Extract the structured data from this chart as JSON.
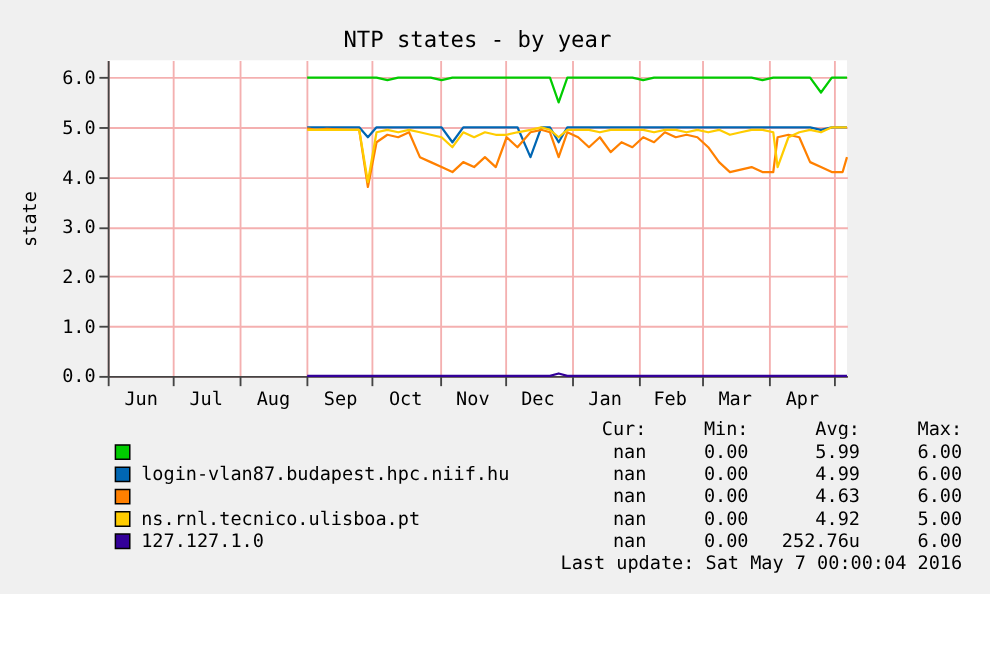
{
  "chart_data": {
    "type": "line",
    "title": "NTP states - by year",
    "ylabel": "state",
    "x": [
      "2015-09-01",
      "2015-09-05",
      "2015-09-10",
      "2015-09-15",
      "2015-09-20",
      "2015-09-25",
      "2015-09-29",
      "2015-10-03",
      "2015-10-08",
      "2015-10-13",
      "2015-10-18",
      "2015-10-23",
      "2015-10-28",
      "2015-11-02",
      "2015-11-07",
      "2015-11-12",
      "2015-11-17",
      "2015-11-22",
      "2015-11-27",
      "2015-12-02",
      "2015-12-07",
      "2015-12-13",
      "2015-12-18",
      "2015-12-22",
      "2015-12-26",
      "2015-12-30",
      "2016-01-04",
      "2016-01-09",
      "2016-01-14",
      "2016-01-19",
      "2016-01-24",
      "2016-01-29",
      "2016-02-03",
      "2016-02-08",
      "2016-02-13",
      "2016-02-18",
      "2016-02-23",
      "2016-02-28",
      "2016-03-04",
      "2016-03-09",
      "2016-03-14",
      "2016-03-19",
      "2016-03-24",
      "2016-03-29",
      "2016-04-03",
      "2016-04-05",
      "2016-04-10",
      "2016-04-15",
      "2016-04-20",
      "2016-04-25",
      "2016-04-30",
      "2016-05-05",
      "2016-05-07"
    ],
    "series": [
      {
        "color": "#00cc00",
        "values": [
          6,
          6,
          6,
          6,
          6,
          6,
          6,
          6,
          5.95,
          6,
          6,
          6,
          6,
          5.95,
          6,
          6,
          6,
          6,
          6,
          6,
          6,
          6,
          6,
          6,
          5.5,
          6,
          6,
          6,
          6,
          6,
          6,
          6,
          5.95,
          6,
          6,
          6,
          6,
          6,
          6,
          6,
          6,
          6,
          6,
          5.95,
          6,
          6,
          6,
          6,
          6,
          5.7,
          6,
          6,
          6
        ]
      },
      {
        "name": "login-vlan87.budapest.hpc.niif.hu",
        "color": "#0066b3",
        "values": [
          5,
          5,
          5,
          5,
          5,
          5,
          4.8,
          5,
          5,
          5,
          5,
          5,
          5,
          5,
          4.7,
          5,
          5,
          5,
          5,
          5,
          5,
          4.4,
          5,
          5,
          4.7,
          5,
          5,
          5,
          5,
          5,
          5,
          5,
          5,
          5,
          5,
          5,
          5,
          5,
          5,
          5,
          5,
          5,
          5,
          5,
          5,
          5,
          5,
          5,
          5,
          4.95,
          5,
          5,
          5
        ]
      },
      {
        "color": "#ff8000",
        "values": [
          4.98,
          4.95,
          4.97,
          4.96,
          4.95,
          4.95,
          3.8,
          4.7,
          4.85,
          4.8,
          4.9,
          4.4,
          4.3,
          4.2,
          4.1,
          4.3,
          4.2,
          4.4,
          4.2,
          4.8,
          4.6,
          4.9,
          4.95,
          4.9,
          4.4,
          4.9,
          4.8,
          4.6,
          4.8,
          4.5,
          4.7,
          4.6,
          4.8,
          4.7,
          4.9,
          4.8,
          4.85,
          4.8,
          4.6,
          4.3,
          4.1,
          4.15,
          4.2,
          4.1,
          4.1,
          4.8,
          4.85,
          4.8,
          4.3,
          4.2,
          4.1,
          4.1,
          4.4
        ]
      },
      {
        "name": "ns.rnl.tecnico.ulisboa.pt",
        "color": "#ffcc00",
        "values": [
          4.95,
          4.95,
          4.95,
          4.95,
          4.95,
          4.95,
          3.9,
          4.9,
          4.95,
          4.9,
          4.95,
          4.9,
          4.85,
          4.8,
          4.6,
          4.9,
          4.8,
          4.9,
          4.85,
          4.85,
          4.9,
          4.95,
          5,
          4.95,
          4.8,
          4.95,
          4.95,
          4.95,
          4.9,
          4.95,
          4.95,
          4.95,
          4.95,
          4.9,
          4.95,
          4.95,
          4.9,
          4.95,
          4.9,
          4.95,
          4.85,
          4.9,
          4.95,
          4.95,
          4.9,
          4.2,
          4.8,
          4.9,
          4.95,
          4.9,
          5,
          5,
          5
        ]
      },
      {
        "name": "127.127.1.0",
        "color": "#330099",
        "values": [
          0,
          0,
          0,
          0,
          0,
          0,
          0,
          0,
          0,
          0,
          0,
          0,
          0,
          0,
          0,
          0,
          0,
          0,
          0,
          0,
          0,
          0,
          0,
          0,
          0.05,
          0,
          0,
          0,
          0,
          0,
          0,
          0,
          0,
          0,
          0,
          0,
          0,
          0,
          0,
          0,
          0,
          0,
          0,
          0,
          0,
          0,
          0,
          0,
          0,
          0,
          0,
          0,
          0
        ]
      }
    ],
    "xlim": [
      "2015-06-01",
      "2016-05-07"
    ],
    "xticks": [
      {
        "value": "2015-06-01",
        "label": null
      },
      {
        "value": "2015-06-16",
        "label": "Jun"
      },
      {
        "value": "2015-07-01",
        "label": null
      },
      {
        "value": "2015-07-16",
        "label": "Jul"
      },
      {
        "value": "2015-08-01",
        "label": null
      },
      {
        "value": "2015-08-16",
        "label": "Aug"
      },
      {
        "value": "2015-09-01",
        "label": null
      },
      {
        "value": "2015-09-16",
        "label": "Sep"
      },
      {
        "value": "2015-10-01",
        "label": null
      },
      {
        "value": "2015-10-16",
        "label": "Oct"
      },
      {
        "value": "2015-11-01",
        "label": null
      },
      {
        "value": "2015-11-16",
        "label": "Nov"
      },
      {
        "value": "2015-12-01",
        "label": null
      },
      {
        "value": "2015-12-16",
        "label": "Dec"
      },
      {
        "value": "2016-01-01",
        "label": null
      },
      {
        "value": "2016-01-16",
        "label": "Jan"
      },
      {
        "value": "2016-02-01",
        "label": null
      },
      {
        "value": "2016-02-15",
        "label": "Feb"
      },
      {
        "value": "2016-03-01",
        "label": null
      },
      {
        "value": "2016-03-16",
        "label": "Mar"
      },
      {
        "value": "2016-04-01",
        "label": null
      },
      {
        "value": "2016-04-16",
        "label": "Apr"
      },
      {
        "value": "2016-05-01",
        "label": null
      }
    ],
    "ylim": [
      0,
      6.35
    ],
    "yticks": [
      {
        "value": 0,
        "label": "0.0"
      },
      {
        "value": 1,
        "label": "1.0"
      },
      {
        "value": 2,
        "label": "2.0"
      },
      {
        "value": 3,
        "label": "3.0"
      },
      {
        "value": 4,
        "label": "4.0"
      },
      {
        "value": 5,
        "label": "5.0"
      },
      {
        "value": 6,
        "label": "6.0"
      }
    ],
    "grid": true,
    "legend": "bottom",
    "marker": "none",
    "line_style": "solid",
    "annotations": [
      "Cur:",
      "Min:",
      "Avg:",
      "Max:",
      "nan",
      "0.00",
      "5.99",
      "6.00",
      "nan",
      "0.00",
      "4.99",
      "6.00",
      "nan",
      "0.00",
      "4.63",
      "6.00",
      "nan",
      "0.00",
      "4.92",
      "5.00",
      "nan",
      "0.00",
      "252.76u",
      "6.00",
      "Last update: Sat May  7 00:00:04 2016"
    ]
  }
}
